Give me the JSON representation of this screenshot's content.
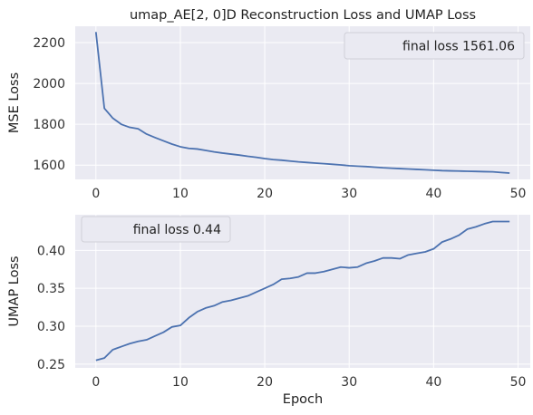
{
  "chart_data": [
    {
      "type": "line",
      "title": "umap_AE[2, 0]D Reconstruction Loss and UMAP Loss",
      "xlabel": "",
      "ylabel": "MSE Loss",
      "xlim": [
        -2.45,
        51.45
      ],
      "ylim": [
        1530,
        2280
      ],
      "xticks": [
        0,
        10,
        20,
        30,
        40,
        50
      ],
      "yticks": [
        1600,
        1800,
        2000,
        2200
      ],
      "grid": true,
      "legend": {
        "placement": "top-right",
        "entries": [
          "final loss 1561.06"
        ]
      },
      "series": [
        {
          "color": "#4c72b0",
          "x": [
            0,
            1,
            2,
            3,
            4,
            5,
            6,
            7,
            8,
            9,
            10,
            11,
            12,
            13,
            14,
            15,
            16,
            17,
            18,
            19,
            20,
            21,
            22,
            23,
            24,
            25,
            26,
            27,
            28,
            29,
            30,
            31,
            32,
            33,
            34,
            35,
            36,
            37,
            38,
            39,
            40,
            41,
            42,
            43,
            44,
            45,
            46,
            47,
            48,
            49
          ],
          "values": [
            2252,
            1878,
            1830,
            1800,
            1785,
            1778,
            1752,
            1735,
            1719,
            1703,
            1690,
            1682,
            1679,
            1672,
            1665,
            1659,
            1654,
            1649,
            1643,
            1638,
            1632,
            1627,
            1624,
            1620,
            1616,
            1613,
            1610,
            1607,
            1604,
            1601,
            1597,
            1595,
            1593,
            1590,
            1587,
            1585,
            1583,
            1581,
            1579,
            1577,
            1575,
            1573,
            1572,
            1571,
            1570,
            1569,
            1568,
            1567,
            1564,
            1561.06
          ]
        }
      ]
    },
    {
      "type": "line",
      "title": "",
      "xlabel": "Epoch",
      "ylabel": "UMAP Loss",
      "xlim": [
        -2.45,
        51.45
      ],
      "ylim": [
        0.245,
        0.447
      ],
      "xticks": [
        0,
        10,
        20,
        30,
        40,
        50
      ],
      "yticks": [
        0.25,
        0.3,
        0.35,
        0.4
      ],
      "ytick_labels": [
        "0.25",
        "0.30",
        "0.35",
        "0.40"
      ],
      "grid": true,
      "legend": {
        "placement": "top-left",
        "entries": [
          "final loss 0.44"
        ]
      },
      "series": [
        {
          "color": "#4c72b0",
          "x": [
            0,
            1,
            2,
            3,
            4,
            5,
            6,
            7,
            8,
            9,
            10,
            11,
            12,
            13,
            14,
            15,
            16,
            17,
            18,
            19,
            20,
            21,
            22,
            23,
            24,
            25,
            26,
            27,
            28,
            29,
            30,
            31,
            32,
            33,
            34,
            35,
            36,
            37,
            38,
            39,
            40,
            41,
            42,
            43,
            44,
            45,
            46,
            47,
            48,
            49
          ],
          "values": [
            0.255,
            0.258,
            0.269,
            0.273,
            0.277,
            0.28,
            0.282,
            0.287,
            0.292,
            0.299,
            0.301,
            0.311,
            0.319,
            0.324,
            0.327,
            0.332,
            0.334,
            0.337,
            0.34,
            0.345,
            0.35,
            0.355,
            0.362,
            0.363,
            0.365,
            0.37,
            0.37,
            0.372,
            0.375,
            0.378,
            0.377,
            0.378,
            0.383,
            0.386,
            0.39,
            0.39,
            0.389,
            0.394,
            0.396,
            0.398,
            0.402,
            0.411,
            0.415,
            0.42,
            0.428,
            0.431,
            0.435,
            0.438,
            0.438,
            0.438
          ]
        }
      ]
    }
  ]
}
